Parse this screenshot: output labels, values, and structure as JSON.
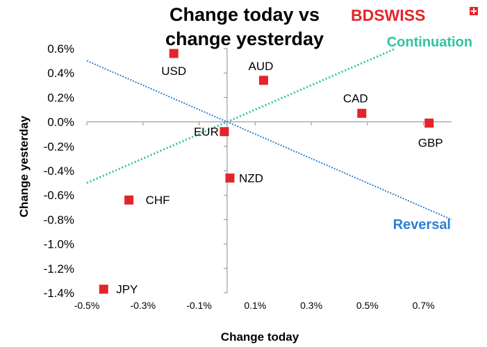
{
  "brand": {
    "name": "BDSWISS",
    "color": "#e3252b"
  },
  "chart_data": {
    "type": "scatter",
    "title": [
      "Change today vs",
      "change yesterday"
    ],
    "xlabel": "Change today",
    "ylabel": "Change yesterday",
    "xlim": [
      -0.5,
      0.8
    ],
    "ylim": [
      -1.4,
      0.6
    ],
    "x_ticks": [
      "-0.5%",
      "-0.3%",
      "-0.1%",
      "0.1%",
      "0.3%",
      "0.5%",
      "0.7%"
    ],
    "x_tick_values": [
      -0.5,
      -0.3,
      -0.1,
      0.1,
      0.3,
      0.5,
      0.7
    ],
    "y_ticks": [
      "0.6%",
      "0.4%",
      "0.2%",
      "0.0%",
      "-0.2%",
      "-0.4%",
      "-0.6%",
      "-0.8%",
      "-1.0%",
      "-1.2%",
      "-1.4%"
    ],
    "y_tick_values": [
      0.6,
      0.4,
      0.2,
      0.0,
      -0.2,
      -0.4,
      -0.6,
      -0.8,
      -1.0,
      -1.2,
      -1.4
    ],
    "grid": false,
    "marker_color": "#e3252b",
    "points": [
      {
        "label": "USD",
        "x": -0.19,
        "y": 0.56
      },
      {
        "label": "AUD",
        "x": 0.13,
        "y": 0.34
      },
      {
        "label": "CAD",
        "x": 0.48,
        "y": 0.07
      },
      {
        "label": "GBP",
        "x": 0.72,
        "y": -0.01
      },
      {
        "label": "EUR",
        "x": -0.01,
        "y": -0.08
      },
      {
        "label": "NZD",
        "x": 0.01,
        "y": -0.46
      },
      {
        "label": "CHF",
        "x": -0.35,
        "y": -0.64
      },
      {
        "label": "JPY",
        "x": -0.44,
        "y": -1.37
      }
    ],
    "reference_lines": [
      {
        "name": "Continuation",
        "x": [
          -0.5,
          0.6
        ],
        "y": [
          -0.5,
          0.6
        ],
        "color": "#2ec4a4"
      },
      {
        "name": "Reversal",
        "x": [
          -0.5,
          0.8
        ],
        "y": [
          0.5,
          -0.8
        ],
        "color": "#2b7fd4"
      }
    ]
  }
}
